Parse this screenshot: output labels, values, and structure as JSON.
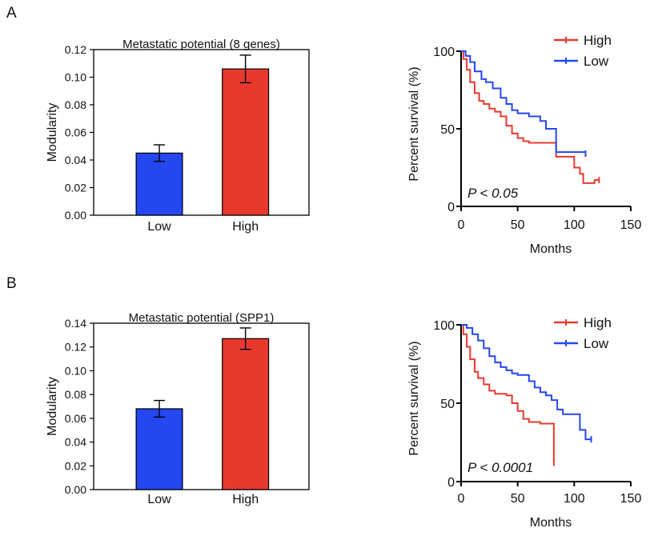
{
  "panels": [
    {
      "letter": "A"
    },
    {
      "letter": "B"
    }
  ],
  "colors": {
    "high": "#e8392f",
    "low": "#2447f0",
    "axis": "#000000"
  },
  "chart_data": [
    {
      "type": "bar",
      "panel": "A",
      "title": "Metastatic potential (8 genes)",
      "xlabel": "",
      "ylabel": "Modularity",
      "categories": [
        "Low",
        "High"
      ],
      "values": [
        0.045,
        0.106
      ],
      "errors": [
        0.006,
        0.01
      ],
      "bar_colors": [
        "#2447f0",
        "#e8392f"
      ],
      "ylim": [
        0,
        0.12
      ],
      "yticks": [
        "0.00",
        "0.02",
        "0.04",
        "0.06",
        "0.08",
        "0.10",
        "0.12"
      ]
    },
    {
      "type": "line",
      "subtype": "kaplan-meier",
      "panel": "A",
      "xlabel": "Months",
      "ylabel": "Percent survival (%)",
      "xlim": [
        0,
        150
      ],
      "ylim": [
        0,
        100
      ],
      "xticks": [
        "0",
        "50",
        "100",
        "150"
      ],
      "yticks": [
        "0",
        "50",
        "100"
      ],
      "annotation": "P < 0.05",
      "legend_position": "top-right",
      "series": [
        {
          "name": "High",
          "color": "#e8392f",
          "points": [
            [
              0,
              100
            ],
            [
              2,
              95
            ],
            [
              5,
              88
            ],
            [
              8,
              80
            ],
            [
              12,
              73
            ],
            [
              16,
              68
            ],
            [
              20,
              66
            ],
            [
              25,
              63
            ],
            [
              30,
              61
            ],
            [
              35,
              58
            ],
            [
              40,
              52
            ],
            [
              45,
              47
            ],
            [
              50,
              44
            ],
            [
              55,
              42
            ],
            [
              60,
              41
            ],
            [
              65,
              41
            ],
            [
              75,
              41
            ],
            [
              83,
              41
            ],
            [
              84,
              32
            ],
            [
              98,
              32
            ],
            [
              100,
              25
            ],
            [
              105,
              21
            ],
            [
              108,
              15
            ],
            [
              115,
              15
            ],
            [
              118,
              17
            ],
            [
              122,
              17
            ]
          ]
        },
        {
          "name": "Low",
          "color": "#2447f0",
          "points": [
            [
              0,
              100
            ],
            [
              4,
              97
            ],
            [
              8,
              93
            ],
            [
              12,
              87
            ],
            [
              18,
              82
            ],
            [
              22,
              80
            ],
            [
              28,
              76
            ],
            [
              35,
              70
            ],
            [
              40,
              66
            ],
            [
              45,
              62
            ],
            [
              50,
              60
            ],
            [
              60,
              58
            ],
            [
              65,
              58
            ],
            [
              70,
              55
            ],
            [
              75,
              50
            ],
            [
              82,
              50
            ],
            [
              84,
              35
            ],
            [
              100,
              35
            ],
            [
              108,
              35
            ],
            [
              110,
              34
            ]
          ]
        }
      ]
    },
    {
      "type": "bar",
      "panel": "B",
      "title": "Metastatic potential (SPP1)",
      "xlabel": "",
      "ylabel": "Modularity",
      "categories": [
        "Low",
        "High"
      ],
      "values": [
        0.068,
        0.127
      ],
      "errors": [
        0.007,
        0.009
      ],
      "bar_colors": [
        "#2447f0",
        "#e8392f"
      ],
      "ylim": [
        0,
        0.14
      ],
      "yticks": [
        "0.00",
        "0.02",
        "0.04",
        "0.06",
        "0.08",
        "0.10",
        "0.12",
        "0.14"
      ]
    },
    {
      "type": "line",
      "subtype": "kaplan-meier",
      "panel": "B",
      "xlabel": "Months",
      "ylabel": "Percent survival (%)",
      "xlim": [
        0,
        150
      ],
      "ylim": [
        0,
        100
      ],
      "xticks": [
        "0",
        "50",
        "100",
        "150"
      ],
      "yticks": [
        "0",
        "50",
        "100"
      ],
      "annotation": "P < 0.0001",
      "legend_position": "top-right",
      "series": [
        {
          "name": "High",
          "color": "#e8392f",
          "points": [
            [
              0,
              100
            ],
            [
              2,
              94
            ],
            [
              5,
              86
            ],
            [
              8,
              78
            ],
            [
              12,
              70
            ],
            [
              15,
              66
            ],
            [
              20,
              62
            ],
            [
              25,
              58
            ],
            [
              30,
              56
            ],
            [
              40,
              55
            ],
            [
              45,
              50
            ],
            [
              50,
              45
            ],
            [
              55,
              40
            ],
            [
              60,
              38
            ],
            [
              70,
              37
            ],
            [
              80,
              37
            ],
            [
              82,
              12
            ]
          ]
        },
        {
          "name": "Low",
          "color": "#2447f0",
          "points": [
            [
              0,
              100
            ],
            [
              5,
              98
            ],
            [
              10,
              94
            ],
            [
              15,
              90
            ],
            [
              20,
              85
            ],
            [
              25,
              80
            ],
            [
              30,
              76
            ],
            [
              35,
              73
            ],
            [
              40,
              71
            ],
            [
              45,
              69
            ],
            [
              50,
              68
            ],
            [
              60,
              64
            ],
            [
              65,
              60
            ],
            [
              70,
              57
            ],
            [
              75,
              55
            ],
            [
              80,
              52
            ],
            [
              85,
              46
            ],
            [
              90,
              43
            ],
            [
              100,
              43
            ],
            [
              105,
              33
            ],
            [
              110,
              27
            ],
            [
              115,
              27
            ]
          ]
        }
      ]
    }
  ]
}
